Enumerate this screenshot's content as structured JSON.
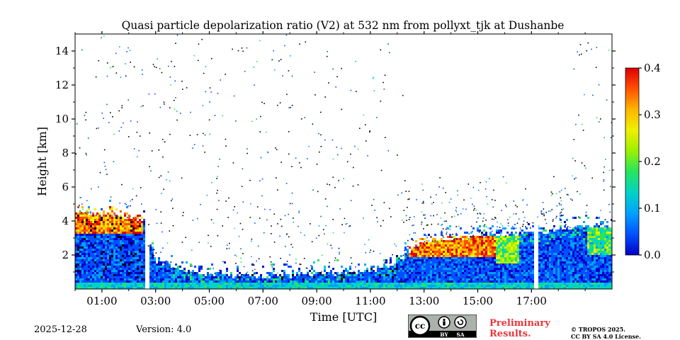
{
  "chart_data": {
    "type": "heatmap",
    "title": "Quasi particle depolarization ratio (V2) at 532 nm from pollyxt_tjk at Dushanbe",
    "xlabel": "Time [UTC]",
    "ylabel": "Height [km]",
    "x_range_hours": [
      0.0,
      20.0
    ],
    "ylim": [
      0.0,
      15.0
    ],
    "x_ticks": [
      {
        "hour": 1,
        "label": "01:00"
      },
      {
        "hour": 3,
        "label": "03:00"
      },
      {
        "hour": 5,
        "label": "05:00"
      },
      {
        "hour": 7,
        "label": "07:00"
      },
      {
        "hour": 9,
        "label": "09:00"
      },
      {
        "hour": 11,
        "label": "11:00"
      },
      {
        "hour": 13,
        "label": "13:00"
      },
      {
        "hour": 15,
        "label": "15:00"
      },
      {
        "hour": 17,
        "label": "17:00"
      }
    ],
    "x_minor_ticks": [
      0,
      2,
      4,
      6,
      8,
      10,
      12,
      14,
      16,
      18,
      19
    ],
    "y_ticks": [
      {
        "value": 2,
        "label": "2"
      },
      {
        "value": 4,
        "label": "4"
      },
      {
        "value": 6,
        "label": "6"
      },
      {
        "value": 8,
        "label": "8"
      },
      {
        "value": 10,
        "label": "10"
      },
      {
        "value": 12,
        "label": "12"
      },
      {
        "value": 14,
        "label": "14"
      }
    ],
    "colorbar": {
      "range": [
        0.0,
        0.4
      ],
      "ticks": [
        {
          "value": 0.0,
          "label": "0.0"
        },
        {
          "value": 0.1,
          "label": "0.1"
        },
        {
          "value": 0.2,
          "label": "0.2"
        },
        {
          "value": 0.3,
          "label": "0.3"
        },
        {
          "value": 0.4,
          "label": "0.4"
        }
      ],
      "colormap": [
        "#0000c8",
        "#0050ff",
        "#00a0ff",
        "#00d2c8",
        "#28e65a",
        "#a0f000",
        "#f0f000",
        "#ffb400",
        "#ff5000",
        "#dc0000"
      ]
    },
    "data_gaps_hours": [
      [
        2.55,
        2.7
      ],
      [
        17.05,
        17.2
      ]
    ],
    "layer_top_km": [
      {
        "hour": 0.0,
        "top": 4.5
      },
      {
        "hour": 1.0,
        "top": 4.3
      },
      {
        "hour": 2.0,
        "top": 4.2
      },
      {
        "hour": 2.55,
        "top": 3.8
      },
      {
        "hour": 2.7,
        "top": 2.6
      },
      {
        "hour": 3.0,
        "top": 1.6
      },
      {
        "hour": 4.0,
        "top": 1.0
      },
      {
        "hour": 5.0,
        "top": 0.8
      },
      {
        "hour": 6.0,
        "top": 0.7
      },
      {
        "hour": 7.0,
        "top": 0.7
      },
      {
        "hour": 8.0,
        "top": 0.75
      },
      {
        "hour": 9.0,
        "top": 0.8
      },
      {
        "hour": 10.0,
        "top": 0.85
      },
      {
        "hour": 11.0,
        "top": 1.0
      },
      {
        "hour": 12.0,
        "top": 1.6
      },
      {
        "hour": 12.5,
        "top": 2.3
      },
      {
        "hour": 13.0,
        "top": 2.7
      },
      {
        "hour": 14.0,
        "top": 2.9
      },
      {
        "hour": 15.0,
        "top": 3.0
      },
      {
        "hour": 16.0,
        "top": 3.1
      },
      {
        "hour": 17.0,
        "top": 3.2
      },
      {
        "hour": 18.0,
        "top": 3.4
      },
      {
        "hour": 19.0,
        "top": 3.6
      },
      {
        "hour": 20.0,
        "top": 3.7
      }
    ],
    "high_depol_regions": [
      {
        "hour_start": 0.0,
        "hour_end": 2.5,
        "km_bottom": 3.2,
        "km_top": 5.0,
        "value": 0.32
      },
      {
        "hour_start": 12.4,
        "hour_end": 15.6,
        "km_bottom": 1.8,
        "km_top": 3.0,
        "value": 0.32
      },
      {
        "hour_start": 15.6,
        "hour_end": 16.5,
        "km_bottom": 1.5,
        "km_top": 3.0,
        "value": 0.2
      },
      {
        "hour_start": 19.0,
        "hour_end": 20.0,
        "km_bottom": 2.0,
        "km_top": 3.5,
        "value": 0.18
      }
    ]
  },
  "footer": {
    "date": "2025-12-28",
    "version": "Version: 4.0",
    "preliminary_line1": "Preliminary",
    "preliminary_line2": "Results.",
    "copyright_line1": "© TROPOS 2025.",
    "copyright_line2": "CC BY SA 4.0 License.",
    "cc_label": "cc",
    "by_label": "BY",
    "sa_label": "SA"
  }
}
